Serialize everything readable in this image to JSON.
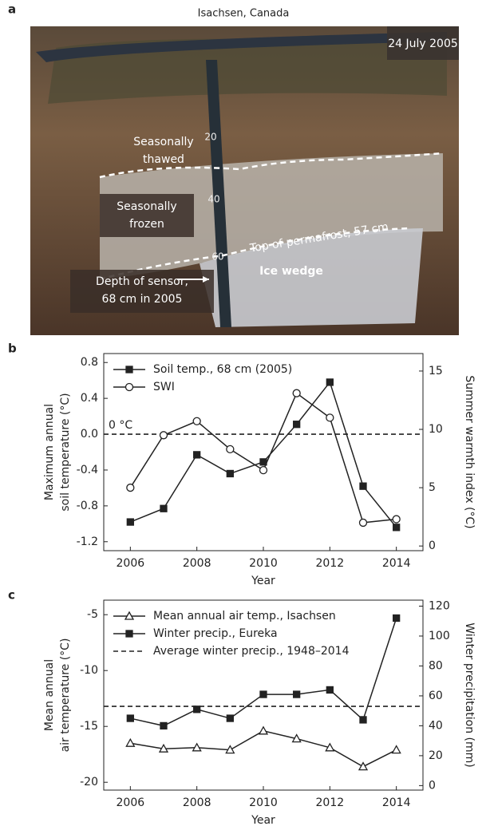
{
  "photo": {
    "label": "a",
    "title": "Isachsen, Canada",
    "date": "24 July 2005",
    "annotations": [
      {
        "lines": [
          "Seasonally",
          "thawed"
        ]
      },
      {
        "lines": [
          "Seasonally",
          "frozen"
        ]
      },
      {
        "lines": [
          "Top of permafrost, 57 cm"
        ]
      },
      {
        "lines": [
          "Depth of sensor,",
          "68 cm in 2005"
        ]
      },
      {
        "lines": [
          "Ice wedge"
        ]
      }
    ],
    "ruler_labels": [
      "20",
      "40",
      "60"
    ]
  },
  "chart_data": [
    {
      "type": "line",
      "label": "b",
      "xlabel": "Year",
      "ylabel": [
        "Maximum annual",
        "soil temperature (°C)"
      ],
      "y2label": "Summer warmth index (°C)",
      "x": [
        2006,
        2007,
        2008,
        2009,
        2010,
        2011,
        2012,
        2013,
        2014
      ],
      "xlim": [
        2005.2,
        2014.8
      ],
      "xticks": [
        2006,
        2008,
        2010,
        2012,
        2014
      ],
      "ylim": [
        -1.3,
        0.9
      ],
      "yticks": [
        0.8,
        0.4,
        {
          "value": 0,
          "label": "0.0"
        },
        -0.4,
        -0.8,
        -1.2
      ],
      "y2lim": [
        -0.4,
        16.5
      ],
      "y2ticks": [
        0,
        5,
        10,
        15
      ],
      "series": [
        {
          "name": "Soil temp., 68 cm (2005)",
          "color": "#222",
          "marker": "square",
          "filled": true,
          "values": [
            -0.98,
            -0.83,
            -0.23,
            -0.44,
            -0.31,
            0.11,
            0.58,
            -0.58,
            -1.04
          ]
        },
        {
          "name": "SWI",
          "color": "#222",
          "marker": "circle",
          "filled": false,
          "axis": "y2",
          "values": [
            5,
            9.5,
            10.7,
            8.3,
            6.5,
            13.1,
            11,
            2,
            2.3
          ]
        }
      ],
      "reference_lines": [
        {
          "label": "0 °C",
          "value": 0
        }
      ]
    },
    {
      "type": "line",
      "label": "c",
      "xlabel": "Year",
      "ylabel": [
        "Mean annual",
        "air temperature (°C)"
      ],
      "y2label": "Winter precipitation (mm)",
      "x": [
        2006,
        2007,
        2008,
        2009,
        2010,
        2011,
        2012,
        2013,
        2014
      ],
      "xlim": [
        2005.2,
        2014.8
      ],
      "xticks": [
        2006,
        2008,
        2010,
        2012,
        2014
      ],
      "ylim": [
        -20.7,
        -3.7
      ],
      "yticks": [
        -5,
        -10,
        -15,
        -20
      ],
      "y2lim": [
        -3,
        124
      ],
      "y2ticks": [
        0,
        20,
        40,
        60,
        80,
        100,
        120
      ],
      "series": [
        {
          "name": "Mean annual air temp., Isachsen",
          "color": "#222",
          "marker": "triangle",
          "filled": false,
          "values": [
            -16.5,
            -17,
            -16.9,
            -17.1,
            -15.4,
            -16.1,
            -16.9,
            -18.6,
            -17.1
          ]
        },
        {
          "name": "Winter precip., Eureka",
          "color": "#222",
          "marker": "square",
          "filled": true,
          "axis": "y2",
          "values": [
            45,
            40,
            51,
            45,
            61,
            61,
            64,
            44,
            112
          ]
        }
      ],
      "reference_lines": [
        {
          "name": "Average winter precip., 1948–2014",
          "value": 53,
          "axis": "y2"
        }
      ]
    }
  ]
}
